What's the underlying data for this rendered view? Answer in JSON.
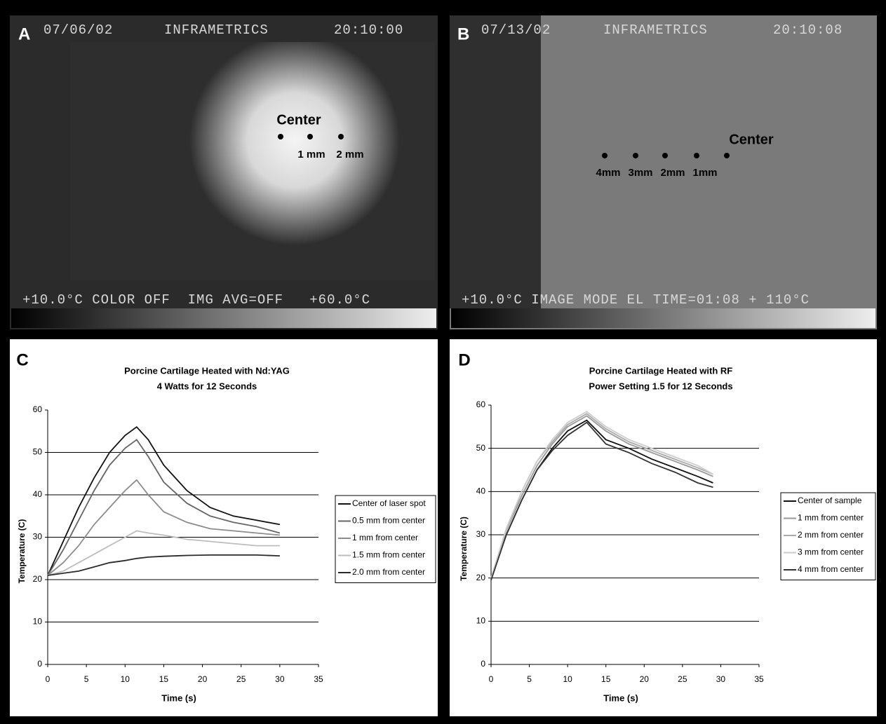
{
  "images": [
    {
      "label": "A",
      "date": "07/06/02",
      "brand": "INFRAMETRICS",
      "time": "20:10:00",
      "footer": "+10.0°C COLOR OFF  IMG AVG=OFF   +60.0°C",
      "point_labels": [
        "Center",
        "1 mm",
        "2 mm"
      ]
    },
    {
      "label": "B",
      "date": "07/13/02",
      "brand": "INFRAMETRICS",
      "time": "20:10:08",
      "footer": "+10.0°C IMAGE MODE EL TIME=01:08 + 110°C",
      "point_labels": [
        "Center",
        "1mm",
        "2mm",
        "3mm",
        "4mm"
      ]
    }
  ],
  "chart_data": [
    {
      "type": "line",
      "panel": "C",
      "title": "Porcine Cartilage Heated with Nd:YAG",
      "subtitle": "4 Watts for 12 Seconds",
      "x_label": "Time (s)",
      "y_label": "Temperature (C)",
      "x": [
        0,
        2,
        4,
        6,
        8,
        10,
        11.5,
        13,
        15,
        18,
        21,
        24,
        27,
        30
      ],
      "series": [
        {
          "name": "Center of laser spot",
          "color": "#111111",
          "values": [
            21,
            29,
            37,
            44,
            50,
            54,
            56,
            53,
            47,
            41,
            37,
            35,
            34,
            33
          ]
        },
        {
          "name": "0.5 mm from center",
          "color": "#666666",
          "values": [
            21,
            27,
            34,
            41,
            47,
            51,
            53,
            49,
            43,
            38,
            35,
            33.5,
            32.5,
            31
          ]
        },
        {
          "name": "1 mm from center",
          "color": "#8c8c8c",
          "values": [
            21,
            24,
            28,
            33,
            37,
            41,
            43.5,
            40,
            36,
            33.5,
            32,
            31.5,
            31,
            30.5
          ]
        },
        {
          "name": "1.5 mm from center",
          "color": "#bdbdbd",
          "values": [
            21,
            22,
            24,
            26,
            28,
            30,
            31.5,
            31,
            30.5,
            29.5,
            29,
            28.5,
            28,
            28
          ]
        },
        {
          "name": "2.0 mm from center",
          "color": "#2a2a2a",
          "values": [
            21,
            21.5,
            22,
            23,
            24,
            24.5,
            25,
            25.3,
            25.5,
            25.7,
            25.8,
            25.8,
            25.8,
            25.6
          ]
        }
      ],
      "xlim": [
        0,
        35
      ],
      "xticks": [
        0,
        5,
        10,
        15,
        20,
        25,
        30,
        35
      ],
      "ylim": [
        0,
        60
      ],
      "yticks": [
        0,
        10,
        20,
        30,
        40,
        50,
        60
      ],
      "grid": true,
      "legend": "right"
    },
    {
      "type": "line",
      "panel": "D",
      "title": "Porcine Cartilage Heated with RF",
      "subtitle": "Power Setting 1.5 for 12 Seconds",
      "x_label": "Time (s)",
      "y_label": "Temperature (C)",
      "x": [
        0,
        2,
        4,
        6,
        8,
        10,
        12.5,
        15,
        18,
        21,
        24,
        27,
        29
      ],
      "series": [
        {
          "name": "Center of sample",
          "color": "#111111",
          "values": [
            20,
            30,
            38,
            45,
            50,
            54,
            56.5,
            52,
            50,
            47.5,
            45.5,
            43.5,
            42
          ]
        },
        {
          "name": "1 mm from center",
          "color": "#999999",
          "values": [
            20,
            31,
            39,
            46,
            51,
            55,
            57.5,
            54,
            51,
            49,
            47,
            45,
            43.5
          ]
        },
        {
          "name": "2 mm from center",
          "color": "#aaaaaa",
          "values": [
            20,
            31,
            40,
            47,
            51.5,
            55.5,
            58,
            54.5,
            51.5,
            49.5,
            47.5,
            45.5,
            44
          ]
        },
        {
          "name": "3 mm from center",
          "color": "#cccccc",
          "values": [
            20,
            31.5,
            40,
            47,
            52,
            56,
            58.5,
            55,
            52,
            50,
            48,
            46,
            44
          ]
        },
        {
          "name": "4 mm from center",
          "color": "#333333",
          "values": [
            19.5,
            30,
            38,
            45,
            49.5,
            53,
            56,
            51,
            49,
            46.5,
            44.5,
            42,
            41
          ]
        }
      ],
      "xlim": [
        0,
        35
      ],
      "xticks": [
        0,
        5,
        10,
        15,
        20,
        25,
        30,
        35
      ],
      "ylim": [
        0,
        60
      ],
      "yticks": [
        0,
        10,
        20,
        30,
        40,
        50,
        60
      ],
      "grid": true,
      "legend": "right"
    }
  ]
}
